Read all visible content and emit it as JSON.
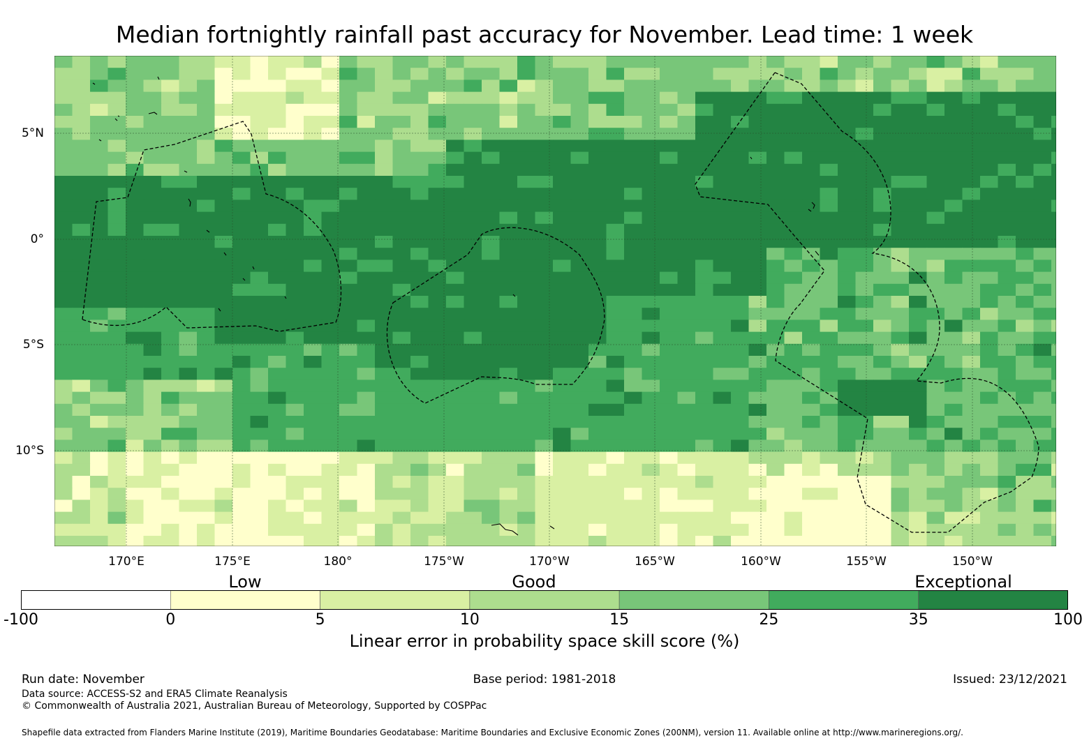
{
  "title": "Median fortnightly rainfall past accuracy for November. Lead time: 1 week",
  "map": {
    "lat_labels": [
      "5°N",
      "0°",
      "5°S",
      "10°S"
    ],
    "lon_labels": [
      "170°E",
      "175°E",
      "180°",
      "175°W",
      "170°W",
      "165°W",
      "160°W",
      "155°W",
      "150°W"
    ],
    "zones": [
      {
        "name": "Dark green band (≥35%)",
        "category": 6
      },
      {
        "name": "Southern low-skill band",
        "category": 2
      }
    ]
  },
  "colorbar": {
    "category_labels": [
      "Low",
      "Good",
      "Exceptional"
    ],
    "tick_labels": [
      "-100",
      "0",
      "5",
      "10",
      "15",
      "25",
      "35",
      "100"
    ],
    "colors": [
      "#ffffff",
      "#ffffcc",
      "#d9f0a3",
      "#addd8e",
      "#78c679",
      "#41ab5d",
      "#238443"
    ],
    "title": "Linear error in probability space skill score (%)"
  },
  "footer": {
    "run_date": "Run date: November",
    "base_period": "Base period: 1981-2018",
    "issued": "Issued: 23/12/2021",
    "data_source": "Data source: ACCESS-S2 and ERA5 Climate Reanalysis",
    "copyright": "© Commonwealth of Australia 2021, Australian Bureau of Meteorology, Supported by COSPPac",
    "shapefile": "Shapefile data extracted from Flanders Marine Institute (2019), Maritime Boundaries Geodatabase: Maritime Boundaries and Exclusive Economic Zones (200NM), version 11. Available online at http://www.marineregions.org/."
  }
}
